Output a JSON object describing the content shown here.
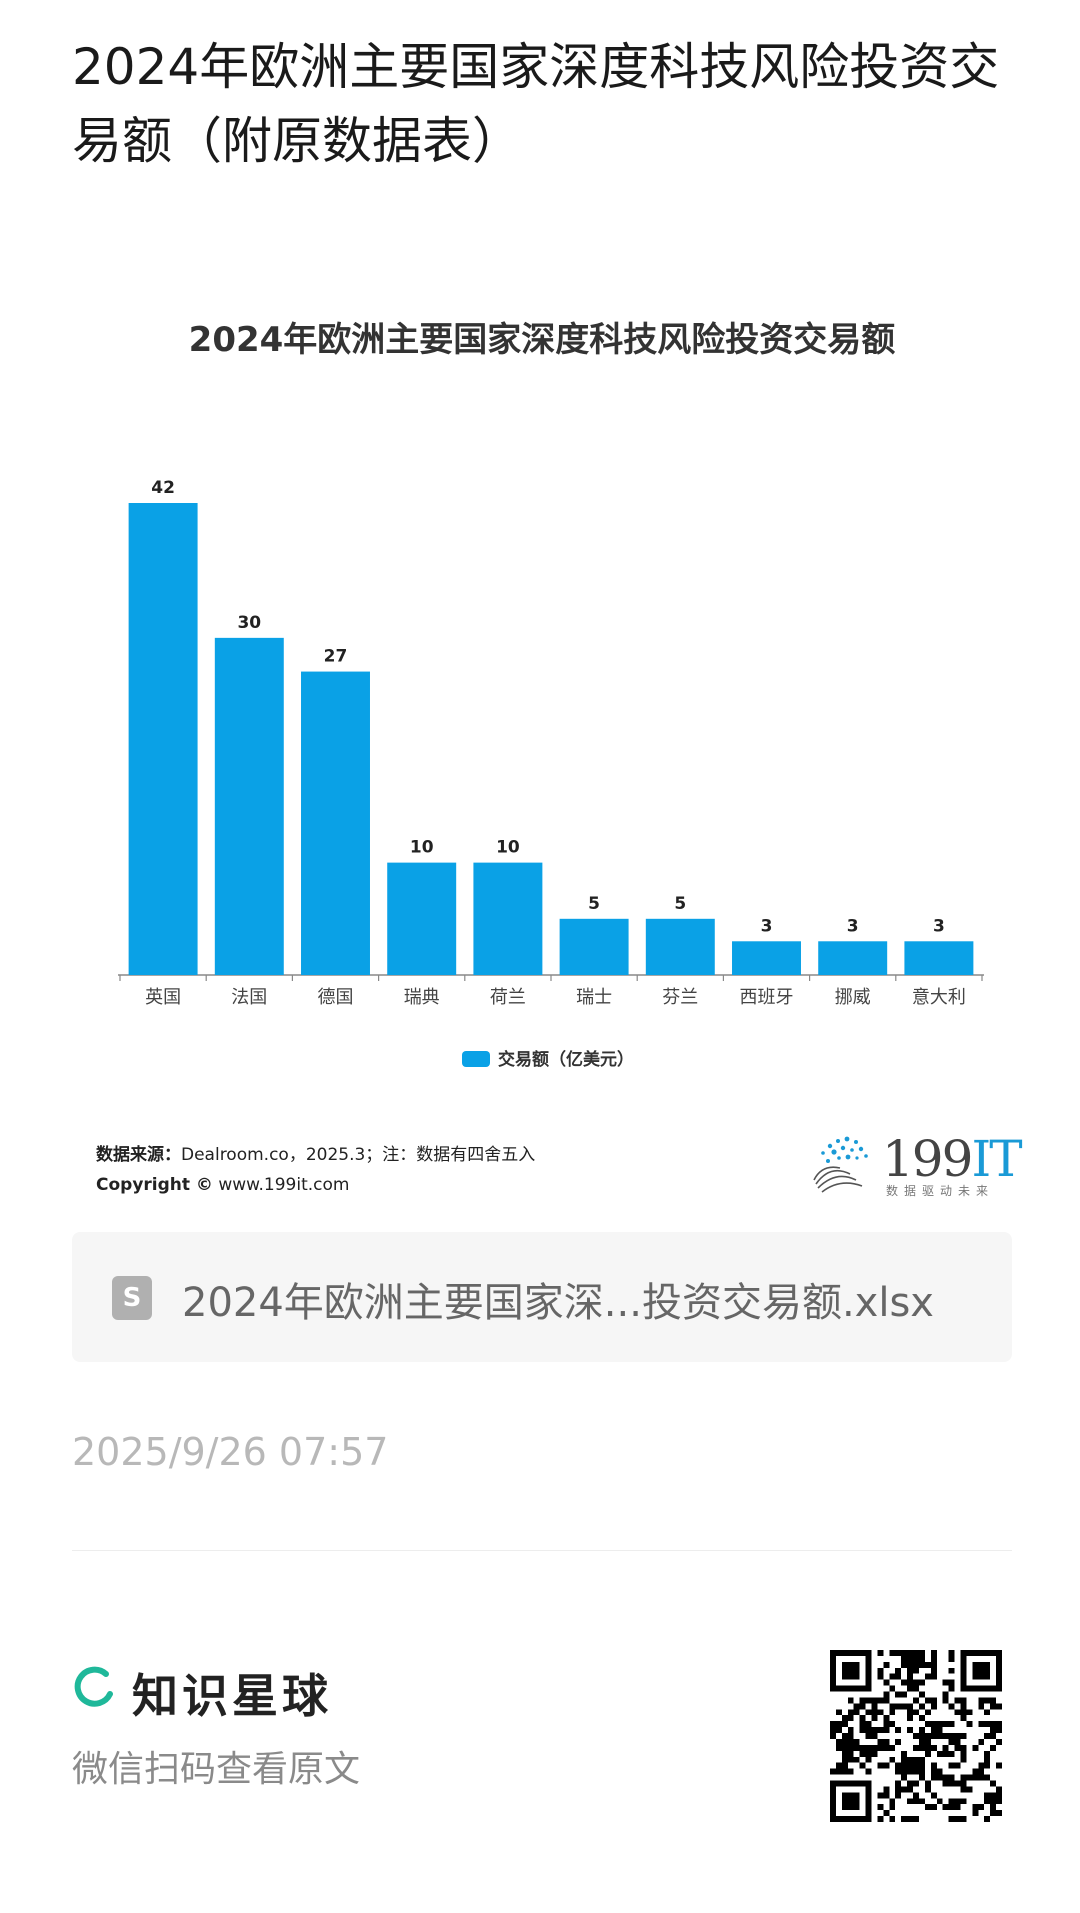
{
  "page": {
    "title": "2024年欧洲主要国家深度科技风险投资交易额（附原数据表）"
  },
  "chart_data": {
    "type": "bar",
    "title": "2024年欧洲主要国家深度科技风险投资交易额",
    "categories": [
      "英国",
      "法国",
      "德国",
      "瑞典",
      "荷兰",
      "瑞士",
      "芬兰",
      "西班牙",
      "挪威",
      "意大利"
    ],
    "series": [
      {
        "name": "交易额（亿美元）",
        "values": [
          42,
          30,
          27,
          10,
          10,
          5,
          5,
          3,
          3,
          3
        ]
      }
    ],
    "ylim": [
      0,
      42
    ],
    "grid": false,
    "legend": "bottom-center",
    "bar_color": "#0aa1e6"
  },
  "source": {
    "label": "数据来源：",
    "text": "Dealroom.co，2025.3；注：数据有四舍五入",
    "copyright_label": "Copyright ©",
    "copyright_text": "www.199it.com"
  },
  "logo": {
    "num": "199",
    "it": "IT",
    "slogan": "数据驱动未来"
  },
  "file": {
    "icon": "spreadsheet-icon",
    "icon_letter": "S",
    "name": "2024年欧洲主要国家深...投资交易额.xlsx"
  },
  "meta": {
    "time": "2025/9/26 07:57"
  },
  "footer": {
    "brand": "知识星球",
    "hint": "微信扫码查看原文",
    "brand_color": "#1fb89a"
  }
}
